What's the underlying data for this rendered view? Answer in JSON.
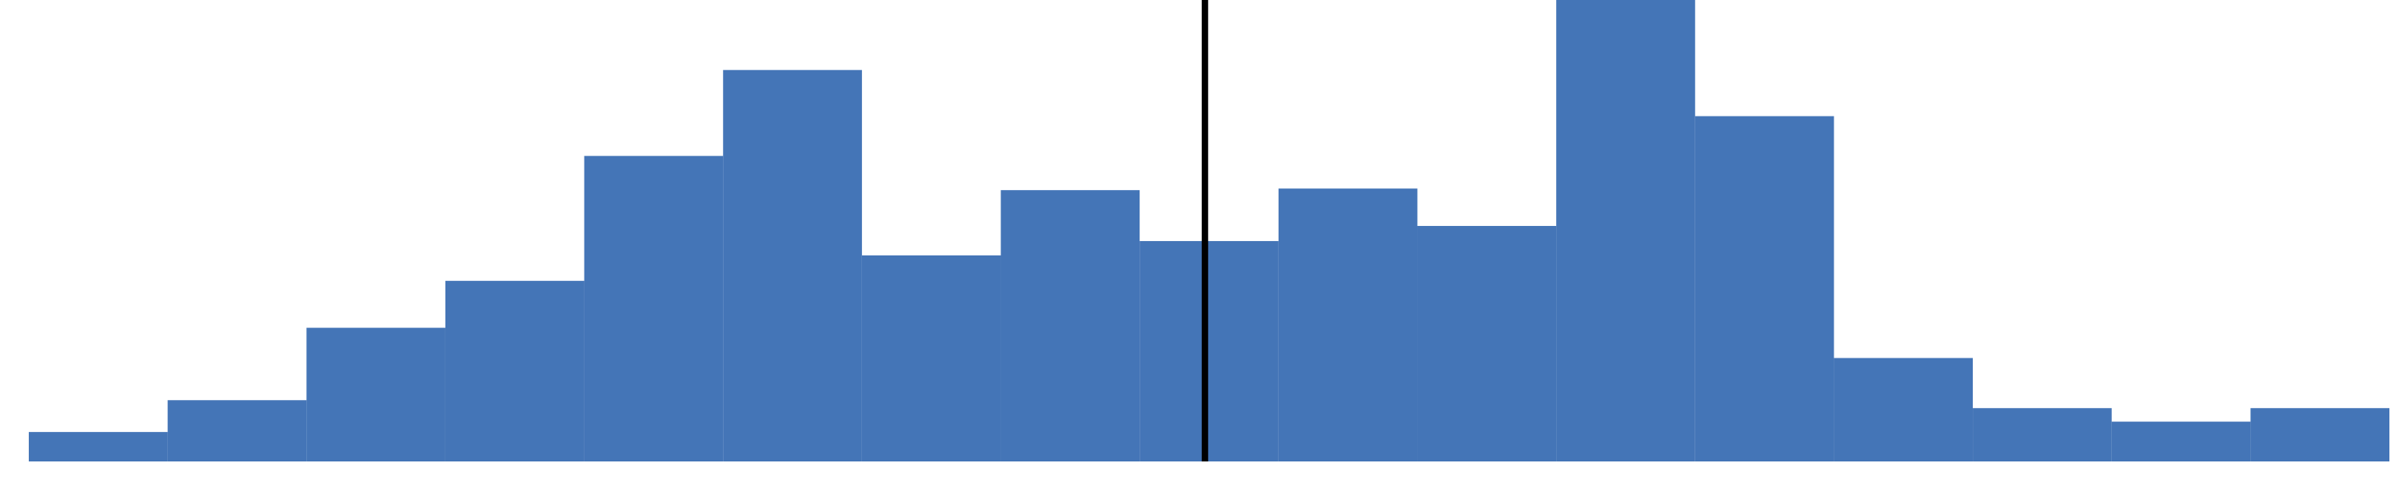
{
  "chart_data": {
    "type": "bar",
    "title": "",
    "xlabel": "",
    "ylabel": "",
    "grid": false,
    "legend": "none",
    "bar_color": "#4475B7",
    "marker_color": "#000000",
    "bins": [
      {
        "x0": 0,
        "x1": 1,
        "value": 37
      },
      {
        "x0": 1,
        "x1": 2,
        "value": 77
      },
      {
        "x0": 2,
        "x1": 3,
        "value": 168
      },
      {
        "x0": 3,
        "x1": 4,
        "value": 227
      },
      {
        "x0": 4,
        "x1": 5,
        "value": 384
      },
      {
        "x0": 5,
        "x1": 6,
        "value": 492
      },
      {
        "x0": 6,
        "x1": 7,
        "value": 259
      },
      {
        "x0": 7,
        "x1": 8,
        "value": 341
      },
      {
        "x0": 8,
        "x1": 8.5,
        "value": 277
      },
      {
        "x0": 8.5,
        "x1": 9,
        "value": 277
      },
      {
        "x0": 9,
        "x1": 10,
        "value": 343
      },
      {
        "x0": 10,
        "x1": 11,
        "value": 296
      },
      {
        "x0": 11,
        "x1": 12,
        "value": 580
      },
      {
        "x0": 12,
        "x1": 13,
        "value": 434
      },
      {
        "x0": 13,
        "x1": 14,
        "value": 130
      },
      {
        "x0": 14,
        "x1": 15,
        "value": 67
      },
      {
        "x0": 15,
        "x1": 16,
        "value": 50
      },
      {
        "x0": 16,
        "x1": 17,
        "value": 67
      }
    ],
    "marker_x": 8.47,
    "xlim": [
      0,
      17
    ],
    "ylim": [
      0,
      580
    ]
  }
}
